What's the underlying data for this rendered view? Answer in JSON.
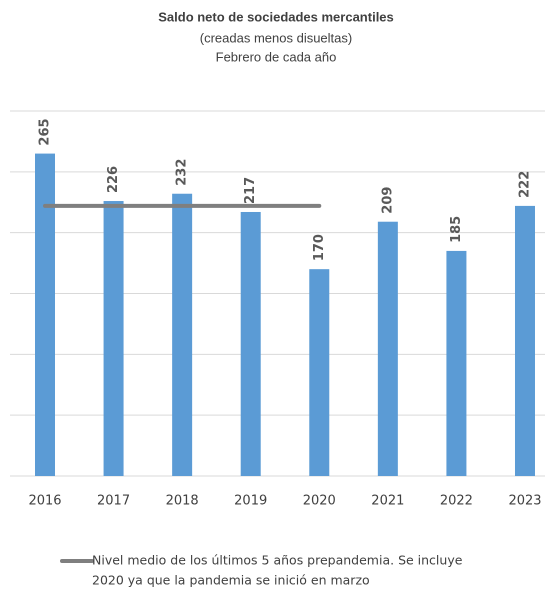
{
  "chart_data": {
    "type": "bar",
    "title": "Saldo neto de sociedades mercantiles",
    "subtitle": [
      "(creadas menos disueltas)",
      "Febrero de cada año"
    ],
    "categories": [
      "2016",
      "2017",
      "2018",
      "2019",
      "2020",
      "2021",
      "2022",
      "2023"
    ],
    "values": [
      265,
      226,
      232,
      217,
      170,
      209,
      185,
      222
    ],
    "color": "#5b9bd5",
    "ylim": [
      0,
      300
    ],
    "yticks": [
      0,
      50,
      100,
      150,
      200,
      250,
      300
    ],
    "grid": true,
    "reference_line": {
      "name": [
        "Nivel medio de los últimos 5 años prepandemia. Se incluye",
        "2020 ya que la pandemia se inició en marzo"
      ],
      "value": 222,
      "x": [
        "2016",
        "2020"
      ],
      "color": "#7f7f7f"
    }
  }
}
